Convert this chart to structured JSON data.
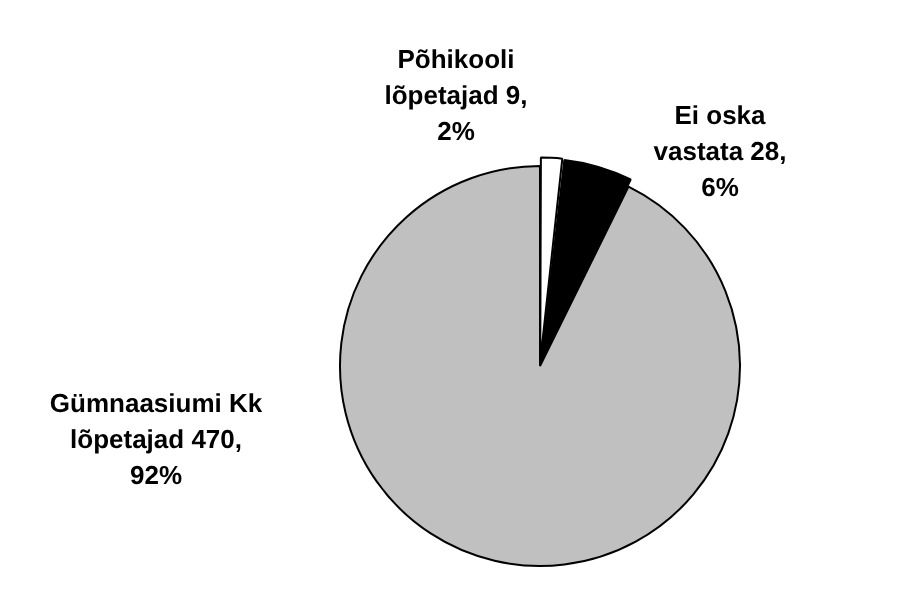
{
  "chart_data": {
    "type": "pie",
    "categories": [
      "Põhikooli lõpetajad",
      "Ei oska vastata",
      "Gümnaasiumi Kk lõpetajad"
    ],
    "values": [
      9,
      28,
      470
    ],
    "value_labels": [
      "9, 2%",
      "28, 6%",
      "470, 92%"
    ],
    "colors": [
      "#ffffff",
      "#000000",
      "#c0c0c0"
    ],
    "legend": false
  }
}
